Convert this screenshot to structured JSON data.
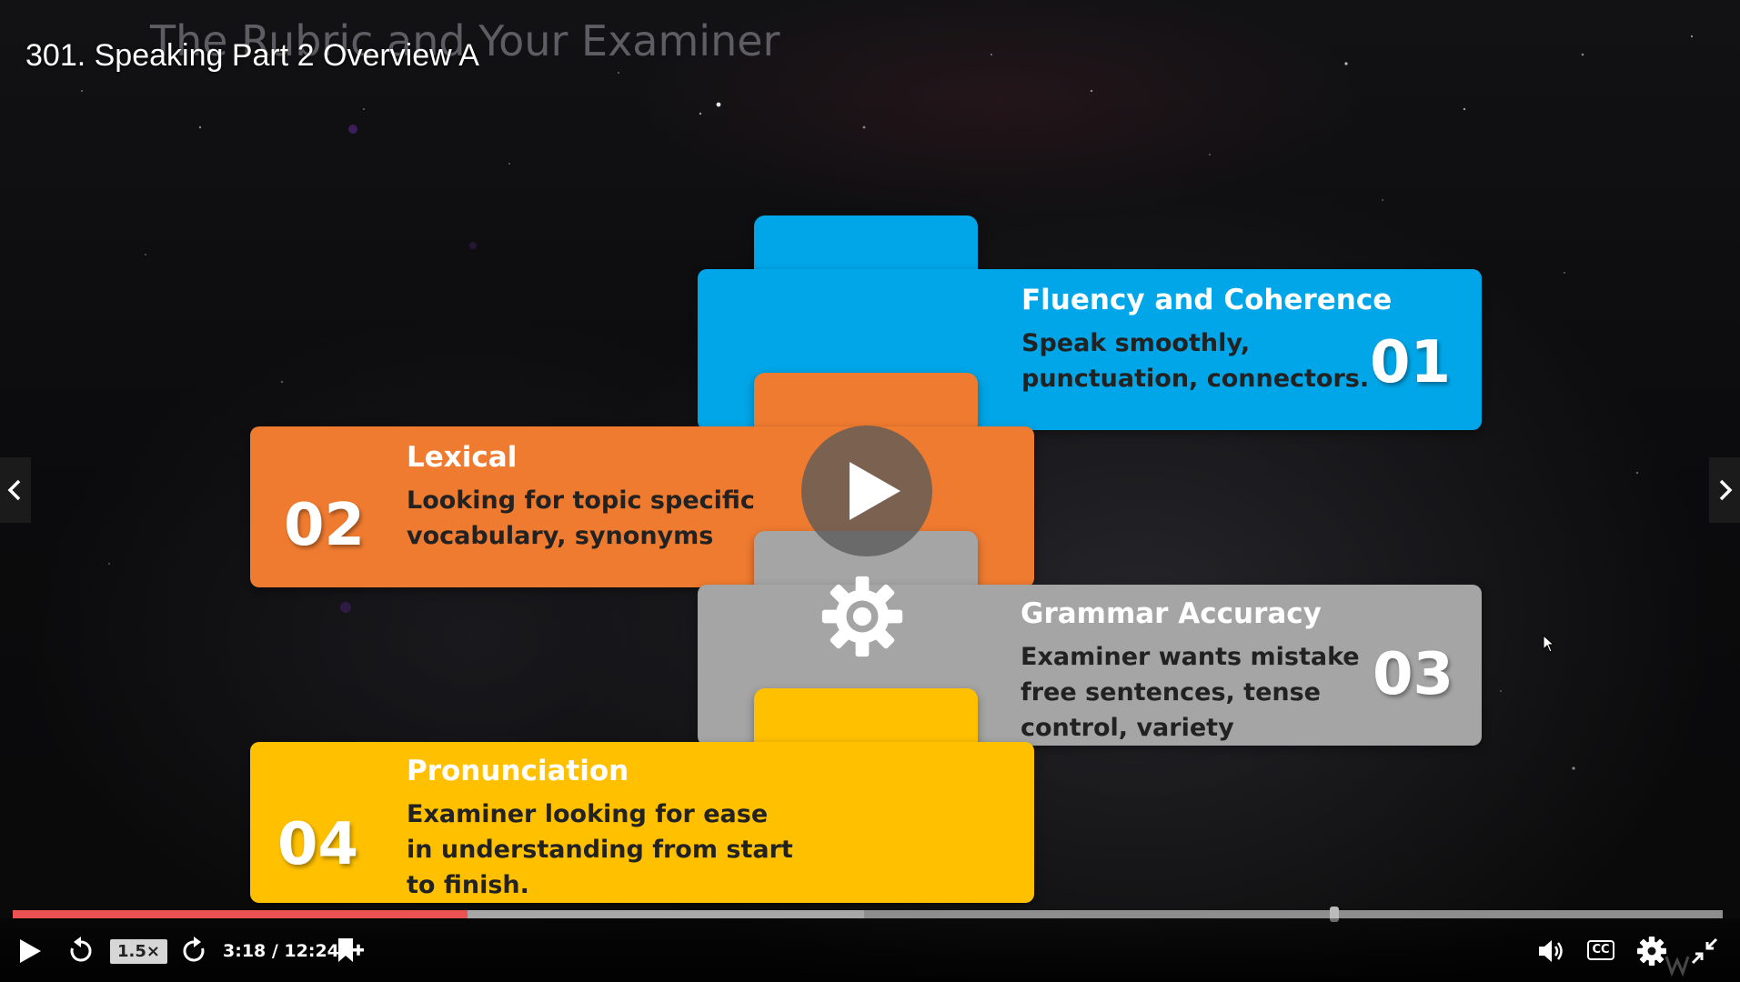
{
  "video": {
    "title": "301. Speaking Part 2 Overview A"
  },
  "slide": {
    "heading": "The Rubric and Your Examiner",
    "cards": [
      {
        "number": "01",
        "title": "Fluency and Coherence",
        "description": "Speak smoothly,\npunctuation, connectors.",
        "color": "#00a6e8"
      },
      {
        "number": "02",
        "title": "Lexical",
        "description": "Looking for topic specific\nvocabulary, synonyms",
        "color": "#ef7b30"
      },
      {
        "number": "03",
        "title": "Grammar Accuracy",
        "description": "Examiner wants mistake\nfree sentences, tense\ncontrol, variety",
        "color": "#a5a5a5"
      },
      {
        "number": "04",
        "title": "Pronunciation",
        "description": "Examiner looking for ease\nin understanding from start\nto finish.",
        "color": "#ffc000"
      }
    ],
    "center_icon": "gear-icon"
  },
  "player": {
    "speed_label": "1.5×",
    "time_display": "3:18 / 12:24",
    "current_time": "3:18",
    "duration": "12:24",
    "played_fraction": 0.266,
    "buffered_fraction": 0.498,
    "bookmark_marker_fraction": 0.77,
    "cc_label": "CC",
    "accent_color": "#ec5252",
    "icons": [
      "play-icon",
      "rewind-icon",
      "forward-icon",
      "bookmark-add-icon",
      "volume-icon",
      "settings-icon",
      "exit-fullscreen-icon",
      "chevron-left-icon",
      "chevron-right-icon"
    ]
  }
}
